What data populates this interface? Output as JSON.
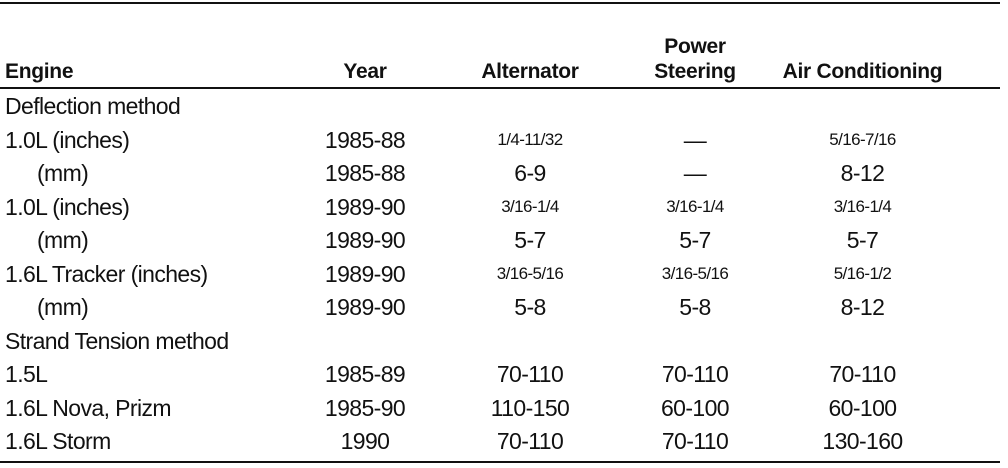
{
  "header": {
    "columns": [
      "Engine",
      "Year",
      "Alternator",
      "Power Steering",
      "Air Conditioning"
    ]
  },
  "sections": [
    {
      "title": "Deflection method",
      "rows": [
        [
          "1.0L (inches)",
          "1985-88",
          "1/4-11/32",
          "—",
          "5/16-7/16"
        ],
        [
          "(mm)",
          "1985-88",
          "6-9",
          "—",
          "8-12"
        ],
        [
          "1.0L (inches)",
          "1989-90",
          "3/16-1/4",
          "3/16-1/4",
          "3/16-1/4"
        ],
        [
          "(mm)",
          "1989-90",
          "5-7",
          "5-7",
          "5-7"
        ],
        [
          "1.6L Tracker (inches)",
          "1989-90",
          "3/16-5/16",
          "3/16-5/16",
          "5/16-1/2"
        ],
        [
          "(mm)",
          "1989-90",
          "5-8",
          "5-8",
          "8-12"
        ]
      ]
    },
    {
      "title": "Strand Tension method",
      "rows": [
        [
          "1.5L",
          "1985-89",
          "70-110",
          "70-110",
          "70-110"
        ],
        [
          "1.6L Nova, Prizm",
          "1985-90",
          "110-150",
          "60-100",
          "60-100"
        ],
        [
          "1.6L Storm",
          "1990",
          "70-110",
          "70-110",
          "130-160"
        ]
      ]
    }
  ]
}
